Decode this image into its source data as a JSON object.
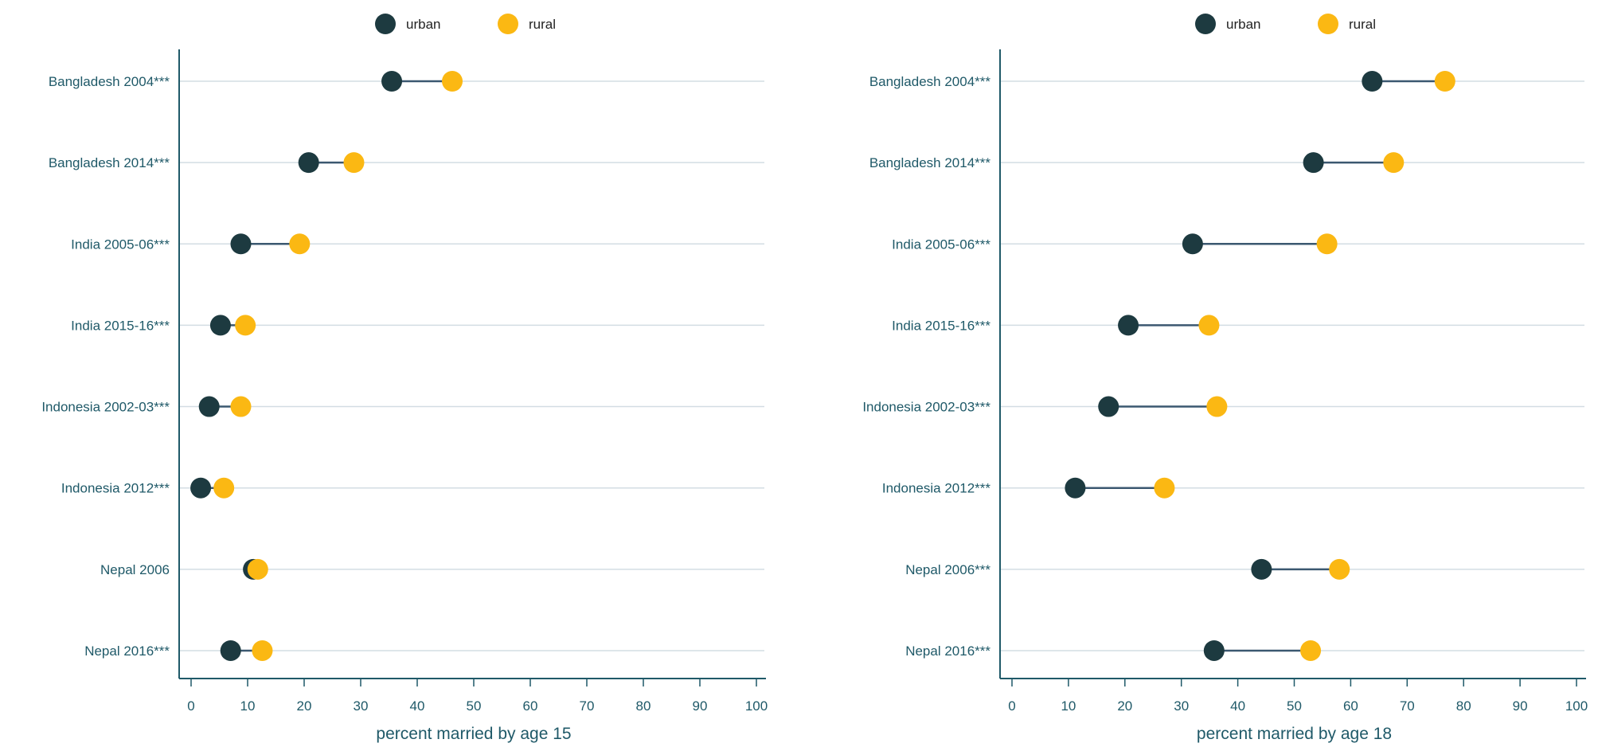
{
  "colors": {
    "urban": "#1d3a40",
    "rural": "#fbb813",
    "axis": "#1f5968",
    "grid": "#d3dde3",
    "connector": "#3b5870",
    "text": "#1f5968"
  },
  "chart_data": [
    {
      "type": "dumbbell",
      "xlabel": "percent married by age 15",
      "xlim": [
        0,
        100
      ],
      "xticks": [
        "0",
        "10",
        "20",
        "30",
        "40",
        "50",
        "60",
        "70",
        "80",
        "90",
        "100"
      ],
      "legend": {
        "placement": "top-center",
        "entries": [
          "urban",
          "rural"
        ]
      },
      "grid": "horizontal",
      "categories": [
        "Bangladesh 2004***",
        "Bangladesh 2014***",
        "India 2005-06***",
        "India 2015-16***",
        "Indonesia 2002-03***",
        "Indonesia 2012***",
        "Nepal 2006",
        "Nepal 2016***"
      ],
      "series": [
        {
          "name": "urban",
          "values": [
            35.5,
            20.8,
            8.8,
            5.2,
            3.2,
            1.7,
            11.0,
            7.0
          ]
        },
        {
          "name": "rural",
          "values": [
            46.2,
            28.8,
            19.2,
            9.6,
            8.8,
            5.8,
            11.8,
            12.6
          ]
        }
      ]
    },
    {
      "type": "dumbbell",
      "xlabel": "percent married by age 18",
      "xlim": [
        0,
        100
      ],
      "xticks": [
        "0",
        "10",
        "20",
        "30",
        "40",
        "50",
        "60",
        "70",
        "80",
        "90",
        "100"
      ],
      "legend": {
        "placement": "top-center",
        "entries": [
          "urban",
          "rural"
        ]
      },
      "grid": "horizontal",
      "categories": [
        "Bangladesh 2004***",
        "Bangladesh 2014***",
        "India 2005-06***",
        "India 2015-16***",
        "Indonesia 2002-03***",
        "Indonesia 2012***",
        "Nepal 2006***",
        "Nepal 2016***"
      ],
      "series": [
        {
          "name": "urban",
          "values": [
            63.8,
            53.4,
            32.0,
            20.6,
            17.1,
            11.2,
            44.2,
            35.8
          ]
        },
        {
          "name": "rural",
          "values": [
            76.7,
            67.6,
            55.8,
            34.9,
            36.3,
            27.0,
            58.0,
            52.9
          ]
        }
      ]
    }
  ]
}
